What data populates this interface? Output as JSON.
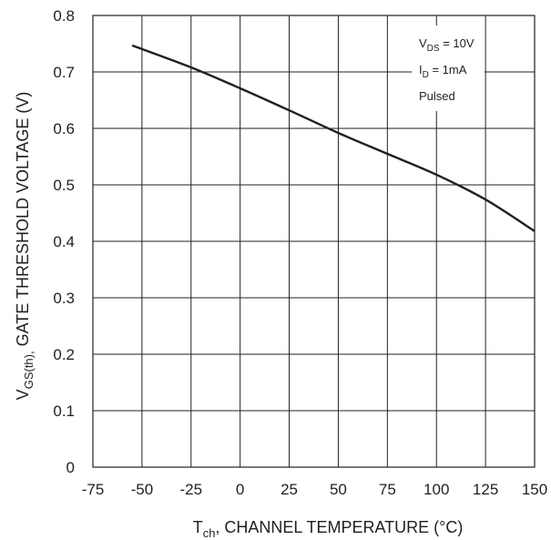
{
  "chart_data": {
    "type": "line",
    "xlabel": {
      "main": "T",
      "sub": "ch",
      "rest": ", CHANNEL TEMPERATURE (°C)"
    },
    "ylabel": {
      "main": "V",
      "sub": "GS(th),",
      "rest": "  GATE THRESHOLD VOLTAGE (V)"
    },
    "xlim": [
      -75,
      150
    ],
    "ylim": [
      0,
      0.8
    ],
    "xticks": [
      -75,
      -50,
      -25,
      0,
      25,
      50,
      75,
      100,
      125,
      150
    ],
    "yticks": [
      0,
      0.1,
      0.2,
      0.3,
      0.4,
      0.5,
      0.6,
      0.7,
      0.8
    ],
    "xtick_labels": [
      "-75",
      "-50",
      "-25",
      "0",
      "25",
      "50",
      "75",
      "100",
      "125",
      "150"
    ],
    "ytick_labels": [
      "0",
      "0.1",
      "0.2",
      "0.3",
      "0.4",
      "0.5",
      "0.6",
      "0.7",
      "0.8"
    ],
    "grid": true,
    "series": [
      {
        "x": [
          -55,
          -25,
          0,
          25,
          50,
          75,
          100,
          125,
          150
        ],
        "y": [
          0.747,
          0.708,
          0.671,
          0.632,
          0.592,
          0.555,
          0.518,
          0.474,
          0.418
        ]
      }
    ],
    "annotations": [
      {
        "main": "V",
        "sub": "DS",
        "rest": " = 10V"
      },
      {
        "main": "I",
        "sub": "D",
        "rest": " = 1mA"
      },
      {
        "main": "Pulsed",
        "sub": "",
        "rest": ""
      }
    ]
  }
}
